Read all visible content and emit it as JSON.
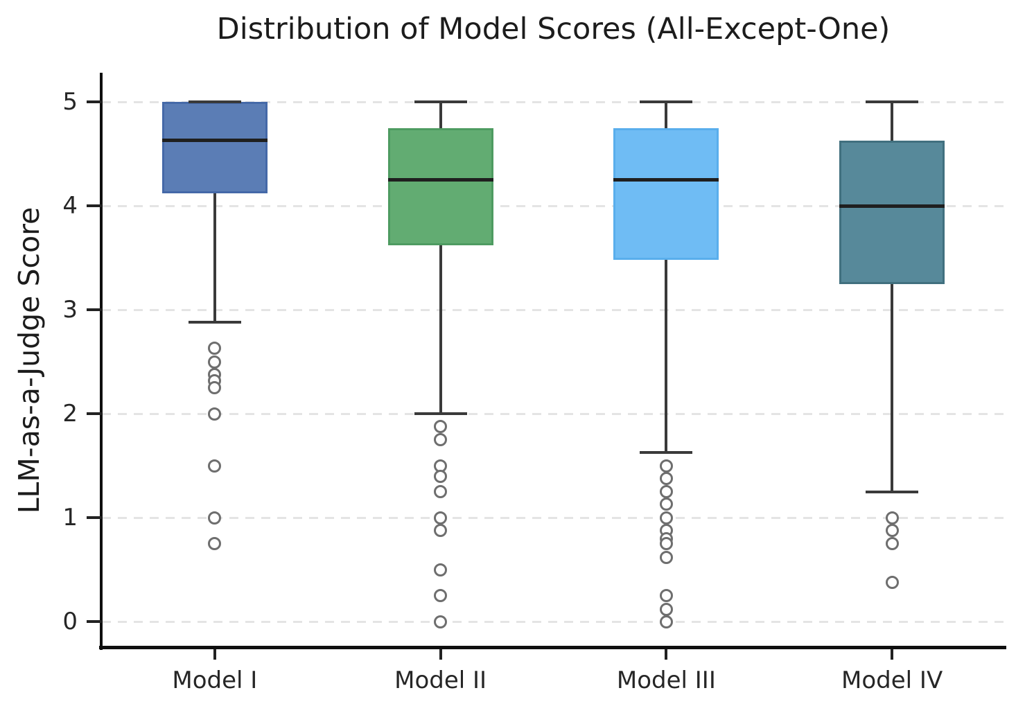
{
  "chart_data": {
    "type": "box",
    "title": "Distribution of Model Scores (All-Except-One)",
    "ylabel": "LLM-as-a-Judge Score",
    "xlabel": "",
    "categories": [
      "Model I",
      "Model II",
      "Model III",
      "Model IV"
    ],
    "yticks": [
      0,
      1,
      2,
      3,
      4,
      5
    ],
    "ylim": [
      -0.25,
      5.28
    ],
    "grid": "horizontal dashed gridlines at integer scores",
    "legend": "none",
    "series": [
      {
        "name": "Model I",
        "fill_color": "#5b7db5",
        "edge_color": "#4569a8",
        "whisker_low": 2.88,
        "q1": 4.12,
        "median": 4.63,
        "q3": 5.0,
        "whisker_high": 5.0,
        "outliers": [
          2.63,
          2.5,
          2.38,
          2.32,
          2.25,
          2.0,
          1.5,
          1.0,
          0.75
        ]
      },
      {
        "name": "Model II",
        "fill_color": "#62ac72",
        "edge_color": "#4e9b61",
        "whisker_low": 2.0,
        "q1": 3.62,
        "median": 4.25,
        "q3": 4.75,
        "whisker_high": 5.0,
        "outliers": [
          1.88,
          1.75,
          1.5,
          1.4,
          1.25,
          1.0,
          0.88,
          0.5,
          0.25,
          0.0
        ]
      },
      {
        "name": "Model III",
        "fill_color": "#6fbcf4",
        "edge_color": "#59aeec",
        "whisker_low": 1.63,
        "q1": 3.48,
        "median": 4.25,
        "q3": 4.75,
        "whisker_high": 5.0,
        "outliers": [
          1.5,
          1.38,
          1.25,
          1.13,
          1.0,
          0.88,
          0.8,
          0.75,
          0.62,
          0.25,
          0.12,
          0.0
        ]
      },
      {
        "name": "Model IV",
        "fill_color": "#57899a",
        "edge_color": "#41707f",
        "whisker_low": 1.25,
        "q1": 3.25,
        "median": 4.0,
        "q3": 4.63,
        "whisker_high": 5.0,
        "outliers": [
          1.0,
          0.88,
          0.75,
          0.38
        ]
      }
    ],
    "style_colors": {
      "grid_color": "#e4e4e4",
      "whisker_color": "#3a3a3a",
      "median_color": "#1f1f1f",
      "outlier_color": "#6e6e6e",
      "spine_color": "#0f0f0f",
      "text_color": "#1c1c1c"
    }
  }
}
